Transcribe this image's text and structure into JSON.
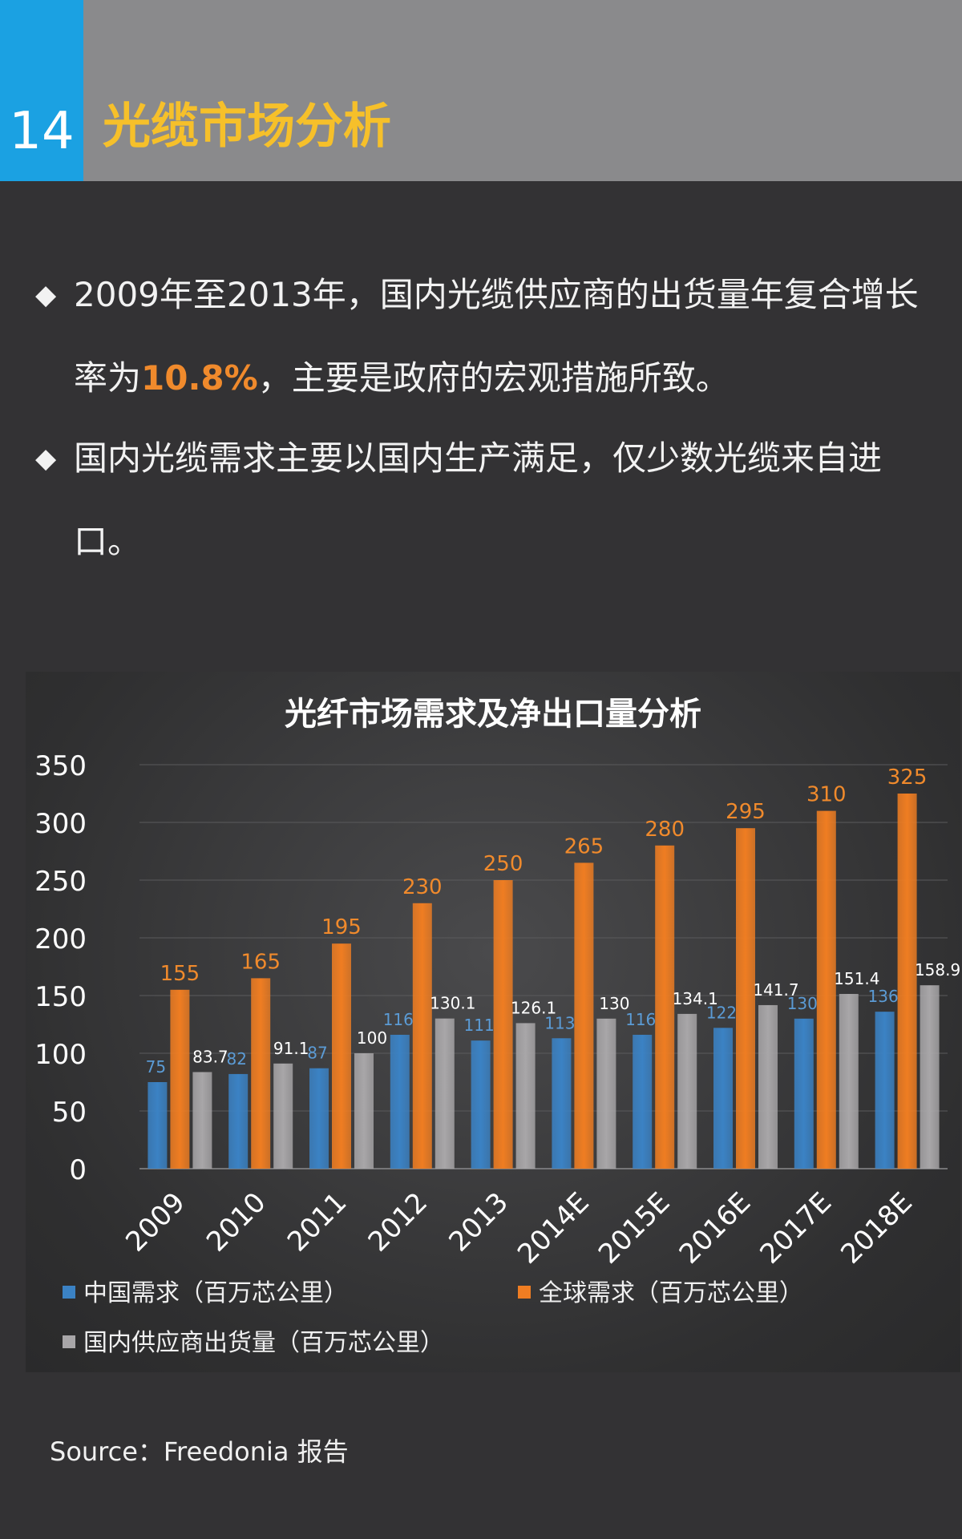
{
  "header": {
    "page_number": "14",
    "title": "光缆市场分析"
  },
  "bullets": [
    {
      "mark": "◆",
      "before": "2009年至2013年，国内光缆供应商的出货量年复合增长率为",
      "highlight": "10.8%",
      "after": "，主要是政府的宏观措施所致。"
    },
    {
      "mark": "◆",
      "before": "国内光缆需求主要以国内生产满足，仅少数光缆来自进口。",
      "highlight": "",
      "after": ""
    }
  ],
  "colors": {
    "header_bg": "#8a8a8c",
    "page_number_bg": "#1ba1e2",
    "title": "#f6c02a",
    "highlight": "#f08a2c",
    "series": [
      "#3b82c4",
      "#ef7d22",
      "#a8a6a8"
    ],
    "label": [
      "#5b9bd5",
      "#f08a2c",
      "#ffffff"
    ]
  },
  "chart_data": {
    "type": "bar",
    "title": "光纤市场需求及净出口量分析",
    "categories": [
      "2009",
      "2010",
      "2011",
      "2012",
      "2013",
      "2014E",
      "2015E",
      "2016E",
      "2017E",
      "2018E"
    ],
    "series": [
      {
        "name": "中国需求（百万芯公里）",
        "values": [
          75,
          82,
          87,
          116,
          111,
          113,
          116,
          122,
          130,
          136
        ]
      },
      {
        "name": "全球需求（百万芯公里）",
        "values": [
          155,
          165,
          195,
          230,
          250,
          265,
          280,
          295,
          310,
          325
        ]
      },
      {
        "name": "国内供应商出货量（百万芯公里）",
        "values": [
          83.7,
          91.1,
          100,
          130.1,
          126.1,
          130,
          134.1,
          141.7,
          151.4,
          158.9
        ]
      }
    ],
    "ylim": [
      0,
      350
    ],
    "yticks": [
      0,
      50,
      100,
      150,
      200,
      250,
      300,
      350
    ],
    "xlabel": "",
    "ylabel": "",
    "grid": true,
    "legend": "bottom"
  },
  "source": "Source：Freedonia 报告"
}
